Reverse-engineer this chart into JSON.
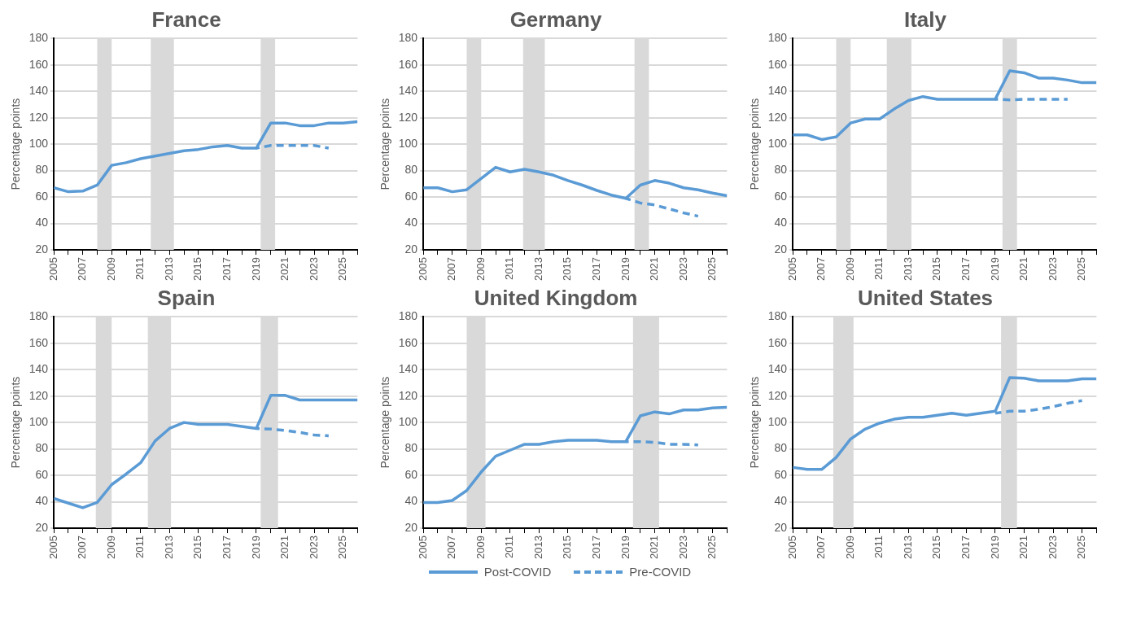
{
  "chart_data": [
    {
      "type": "line",
      "title": "France",
      "ylabel": "Percentage points",
      "x": [
        2005,
        2006,
        2007,
        2008,
        2009,
        2010,
        2011,
        2012,
        2013,
        2014,
        2015,
        2016,
        2017,
        2018,
        2019,
        2020,
        2021,
        2022,
        2023,
        2024,
        2025,
        2026
      ],
      "xlim": [
        2005,
        2026
      ],
      "xticks": [
        2005,
        {
          "value": 2006,
          "label": null
        },
        2007,
        {
          "value": 2008,
          "label": null
        },
        2009,
        {
          "value": 2010,
          "label": null
        },
        2011,
        {
          "value": 2012,
          "label": null
        },
        2013,
        {
          "value": 2014,
          "label": null
        },
        2015,
        {
          "value": 2016,
          "label": null
        },
        2017,
        {
          "value": 2018,
          "label": null
        },
        2019,
        {
          "value": 2020,
          "label": null
        },
        2021,
        {
          "value": 2022,
          "label": null
        },
        2023,
        {
          "value": 2024,
          "label": null
        },
        2025,
        {
          "value": 2026,
          "label": null
        }
      ],
      "ylim": [
        20,
        180
      ],
      "yticks": [
        20,
        40,
        60,
        80,
        100,
        120,
        140,
        160,
        180
      ],
      "grid": "y",
      "legend": "bottom",
      "marker": "none",
      "series": [
        {
          "name": "Post-COVID",
          "color": "#5b9bd5",
          "line_style": "solid",
          "values": [
            67,
            64,
            64.5,
            69,
            84,
            86,
            89,
            91,
            93,
            95,
            96,
            98,
            99,
            97,
            97,
            116,
            116,
            114,
            114,
            116,
            116,
            117
          ]
        },
        {
          "name": "Pre-COVID",
          "color": "#5b9bd5",
          "line_style": "dashed",
          "values": [
            null,
            null,
            null,
            null,
            null,
            null,
            null,
            null,
            null,
            null,
            null,
            null,
            null,
            null,
            97,
            99,
            99,
            99,
            99,
            97,
            null,
            null
          ]
        }
      ],
      "bands": [
        {
          "axis": "x",
          "from": 2008,
          "to": 2009,
          "color": "#d9d9d9"
        },
        {
          "axis": "x",
          "from": 2011.7,
          "to": 2013.3,
          "color": "#d9d9d9"
        },
        {
          "axis": "x",
          "from": 2019.3,
          "to": 2020.3,
          "color": "#d9d9d9"
        }
      ]
    },
    {
      "type": "line",
      "title": "Germany",
      "ylabel": "Percentage points",
      "x": [
        2005,
        2006,
        2007,
        2008,
        2009,
        2010,
        2011,
        2012,
        2013,
        2014,
        2015,
        2016,
        2017,
        2018,
        2019,
        2020,
        2021,
        2022,
        2023,
        2024,
        2025,
        2026
      ],
      "xlim": [
        2005,
        2026
      ],
      "xticks": [
        2005,
        {
          "value": 2006,
          "label": null
        },
        2007,
        {
          "value": 2008,
          "label": null
        },
        2009,
        {
          "value": 2010,
          "label": null
        },
        2011,
        {
          "value": 2012,
          "label": null
        },
        2013,
        {
          "value": 2014,
          "label": null
        },
        2015,
        {
          "value": 2016,
          "label": null
        },
        2017,
        {
          "value": 2018,
          "label": null
        },
        2019,
        {
          "value": 2020,
          "label": null
        },
        2021,
        {
          "value": 2022,
          "label": null
        },
        2023,
        {
          "value": 2024,
          "label": null
        },
        2025,
        {
          "value": 2026,
          "label": null
        }
      ],
      "ylim": [
        20,
        180
      ],
      "yticks": [
        20,
        40,
        60,
        80,
        100,
        120,
        140,
        160,
        180
      ],
      "grid": "y",
      "legend": "bottom",
      "marker": "none",
      "series": [
        {
          "name": "Post-COVID",
          "color": "#5b9bd5",
          "line_style": "solid",
          "values": [
            67,
            67,
            64,
            65.5,
            74,
            82.5,
            79,
            81,
            79,
            76.5,
            72.5,
            69,
            65,
            61.5,
            59,
            69,
            72.5,
            70.5,
            67,
            65.5,
            63,
            61
          ]
        },
        {
          "name": "Pre-COVID",
          "color": "#5b9bd5",
          "line_style": "dashed",
          "values": [
            null,
            null,
            null,
            null,
            null,
            null,
            null,
            null,
            null,
            null,
            null,
            null,
            null,
            null,
            59,
            55.5,
            54,
            51,
            48,
            45.5,
            null,
            null
          ]
        }
      ],
      "bands": [
        {
          "axis": "x",
          "from": 2008,
          "to": 2009,
          "color": "#d9d9d9"
        },
        {
          "axis": "x",
          "from": 2011.9,
          "to": 2013.4,
          "color": "#d9d9d9"
        },
        {
          "axis": "x",
          "from": 2019.6,
          "to": 2020.6,
          "color": "#d9d9d9"
        }
      ]
    },
    {
      "type": "line",
      "title": "Italy",
      "ylabel": "Percentage points",
      "x": [
        2005,
        2006,
        2007,
        2008,
        2009,
        2010,
        2011,
        2012,
        2013,
        2014,
        2015,
        2016,
        2017,
        2018,
        2019,
        2020,
        2021,
        2022,
        2023,
        2024,
        2025,
        2026
      ],
      "xlim": [
        2005,
        2026
      ],
      "xticks": [
        2005,
        {
          "value": 2006,
          "label": null
        },
        2007,
        {
          "value": 2008,
          "label": null
        },
        2009,
        {
          "value": 2010,
          "label": null
        },
        2011,
        {
          "value": 2012,
          "label": null
        },
        2013,
        {
          "value": 2014,
          "label": null
        },
        2015,
        {
          "value": 2016,
          "label": null
        },
        2017,
        {
          "value": 2018,
          "label": null
        },
        2019,
        {
          "value": 2020,
          "label": null
        },
        2021,
        {
          "value": 2022,
          "label": null
        },
        2023,
        {
          "value": 2024,
          "label": null
        },
        2025,
        {
          "value": 2026,
          "label": null
        }
      ],
      "ylim": [
        20,
        180
      ],
      "yticks": [
        20,
        40,
        60,
        80,
        100,
        120,
        140,
        160,
        180
      ],
      "grid": "y",
      "legend": "bottom",
      "marker": "none",
      "series": [
        {
          "name": "Post-COVID",
          "color": "#5b9bd5",
          "line_style": "solid",
          "values": [
            107,
            107,
            103.5,
            105.5,
            116,
            119,
            119,
            126.5,
            133,
            136,
            134,
            134,
            134,
            134,
            134,
            155.5,
            154,
            150,
            150,
            148.5,
            146.5,
            146.5
          ]
        },
        {
          "name": "Pre-COVID",
          "color": "#5b9bd5",
          "line_style": "dashed",
          "values": [
            null,
            null,
            null,
            null,
            null,
            null,
            null,
            null,
            null,
            null,
            null,
            null,
            null,
            null,
            134,
            133.5,
            134,
            134,
            134,
            134,
            null,
            null
          ]
        }
      ],
      "bands": [
        {
          "axis": "x",
          "from": 2008,
          "to": 2009,
          "color": "#d9d9d9"
        },
        {
          "axis": "x",
          "from": 2011.5,
          "to": 2013.2,
          "color": "#d9d9d9"
        },
        {
          "axis": "x",
          "from": 2019.5,
          "to": 2020.5,
          "color": "#d9d9d9"
        }
      ]
    },
    {
      "type": "line",
      "title": "Spain",
      "ylabel": "Percentage points",
      "x": [
        2005,
        2006,
        2007,
        2008,
        2009,
        2010,
        2011,
        2012,
        2013,
        2014,
        2015,
        2016,
        2017,
        2018,
        2019,
        2020,
        2021,
        2022,
        2023,
        2024,
        2025,
        2026
      ],
      "xlim": [
        2005,
        2026
      ],
      "xticks": [
        2005,
        {
          "value": 2006,
          "label": null
        },
        2007,
        {
          "value": 2008,
          "label": null
        },
        2009,
        {
          "value": 2010,
          "label": null
        },
        2011,
        {
          "value": 2012,
          "label": null
        },
        2013,
        {
          "value": 2014,
          "label": null
        },
        2015,
        {
          "value": 2016,
          "label": null
        },
        2017,
        {
          "value": 2018,
          "label": null
        },
        2019,
        {
          "value": 2020,
          "label": null
        },
        2021,
        {
          "value": 2022,
          "label": null
        },
        2023,
        {
          "value": 2024,
          "label": null
        },
        2025,
        {
          "value": 2026,
          "label": null
        }
      ],
      "ylim": [
        20,
        180
      ],
      "yticks": [
        20,
        40,
        60,
        80,
        100,
        120,
        140,
        160,
        180
      ],
      "grid": "y",
      "legend": "bottom",
      "marker": "none",
      "series": [
        {
          "name": "Post-COVID",
          "color": "#5b9bd5",
          "line_style": "solid",
          "values": [
            42.5,
            39,
            35.5,
            39.5,
            53,
            61,
            69.5,
            86,
            95.5,
            100,
            98.5,
            98.5,
            98.5,
            97,
            95.5,
            120.5,
            120.5,
            117,
            117,
            117,
            117,
            117
          ]
        },
        {
          "name": "Pre-COVID",
          "color": "#5b9bd5",
          "line_style": "dashed",
          "values": [
            null,
            null,
            null,
            null,
            null,
            null,
            null,
            null,
            null,
            null,
            null,
            null,
            null,
            null,
            95.5,
            95,
            94,
            92.5,
            90.5,
            90,
            null,
            null
          ]
        }
      ],
      "bands": [
        {
          "axis": "x",
          "from": 2007.9,
          "to": 2009,
          "color": "#d9d9d9"
        },
        {
          "axis": "x",
          "from": 2011.5,
          "to": 2013.1,
          "color": "#d9d9d9"
        },
        {
          "axis": "x",
          "from": 2019.3,
          "to": 2020.5,
          "color": "#d9d9d9"
        }
      ]
    },
    {
      "type": "line",
      "title": "United Kingdom",
      "ylabel": "Percentage points",
      "x": [
        2005,
        2006,
        2007,
        2008,
        2009,
        2010,
        2011,
        2012,
        2013,
        2014,
        2015,
        2016,
        2017,
        2018,
        2019,
        2020,
        2021,
        2022,
        2023,
        2024,
        2025,
        2026
      ],
      "xlim": [
        2005,
        2026
      ],
      "xticks": [
        2005,
        {
          "value": 2006,
          "label": null
        },
        2007,
        {
          "value": 2008,
          "label": null
        },
        2009,
        {
          "value": 2010,
          "label": null
        },
        2011,
        {
          "value": 2012,
          "label": null
        },
        2013,
        {
          "value": 2014,
          "label": null
        },
        2015,
        {
          "value": 2016,
          "label": null
        },
        2017,
        {
          "value": 2018,
          "label": null
        },
        2019,
        {
          "value": 2020,
          "label": null
        },
        2021,
        {
          "value": 2022,
          "label": null
        },
        2023,
        {
          "value": 2024,
          "label": null
        },
        2025,
        {
          "value": 2026,
          "label": null
        }
      ],
      "ylim": [
        20,
        180
      ],
      "yticks": [
        20,
        40,
        60,
        80,
        100,
        120,
        140,
        160,
        180
      ],
      "grid": "y",
      "legend": "bottom",
      "marker": "none",
      "series": [
        {
          "name": "Post-COVID",
          "color": "#5b9bd5",
          "line_style": "solid",
          "values": [
            39.5,
            39.5,
            41,
            48.5,
            62.5,
            74.5,
            79,
            83.5,
            83.5,
            85.5,
            86.5,
            86.5,
            86.5,
            85.5,
            85.5,
            105,
            108,
            106.5,
            109.5,
            109.5,
            111,
            111.5
          ]
        },
        {
          "name": "Pre-COVID",
          "color": "#5b9bd5",
          "line_style": "dashed",
          "values": [
            null,
            null,
            null,
            null,
            null,
            null,
            null,
            null,
            null,
            null,
            null,
            null,
            null,
            null,
            85.5,
            85.5,
            85,
            83.5,
            83.5,
            83,
            null,
            null
          ]
        }
      ],
      "bands": [
        {
          "axis": "x",
          "from": 2008,
          "to": 2009.3,
          "color": "#d9d9d9"
        },
        {
          "axis": "x",
          "from": 2019.5,
          "to": 2021.3,
          "color": "#d9d9d9"
        }
      ]
    },
    {
      "type": "line",
      "title": "United States",
      "ylabel": "Percentage points",
      "x": [
        2005,
        2006,
        2007,
        2008,
        2009,
        2010,
        2011,
        2012,
        2013,
        2014,
        2015,
        2016,
        2017,
        2018,
        2019,
        2020,
        2021,
        2022,
        2023,
        2024,
        2025,
        2026
      ],
      "xlim": [
        2005,
        2026
      ],
      "xticks": [
        2005,
        {
          "value": 2006,
          "label": null
        },
        2007,
        {
          "value": 2008,
          "label": null
        },
        2009,
        {
          "value": 2010,
          "label": null
        },
        2011,
        {
          "value": 2012,
          "label": null
        },
        2013,
        {
          "value": 2014,
          "label": null
        },
        2015,
        {
          "value": 2016,
          "label": null
        },
        2017,
        {
          "value": 2018,
          "label": null
        },
        2019,
        {
          "value": 2020,
          "label": null
        },
        2021,
        {
          "value": 2022,
          "label": null
        },
        2023,
        {
          "value": 2024,
          "label": null
        },
        2025,
        {
          "value": 2026,
          "label": null
        }
      ],
      "ylim": [
        20,
        180
      ],
      "yticks": [
        20,
        40,
        60,
        80,
        100,
        120,
        140,
        160,
        180
      ],
      "grid": "y",
      "legend": "bottom",
      "marker": "none",
      "series": [
        {
          "name": "Post-COVID",
          "color": "#5b9bd5",
          "line_style": "solid",
          "values": [
            66,
            64.5,
            64.5,
            73.5,
            87.5,
            95,
            99.5,
            102.5,
            104,
            104,
            105.5,
            107,
            105.5,
            107,
            108.5,
            134,
            133.5,
            131.5,
            131.5,
            131.5,
            133,
            133
          ]
        },
        {
          "name": "Pre-COVID",
          "color": "#5b9bd5",
          "line_style": "dashed",
          "values": [
            null,
            null,
            null,
            null,
            null,
            null,
            null,
            null,
            null,
            null,
            null,
            null,
            null,
            null,
            107,
            108.5,
            108.5,
            110,
            112,
            114.5,
            116.5,
            null
          ]
        }
      ],
      "bands": [
        {
          "axis": "x",
          "from": 2007.8,
          "to": 2009.2,
          "color": "#d9d9d9"
        },
        {
          "axis": "x",
          "from": 2019.4,
          "to": 2020.5,
          "color": "#d9d9d9"
        }
      ]
    }
  ]
}
